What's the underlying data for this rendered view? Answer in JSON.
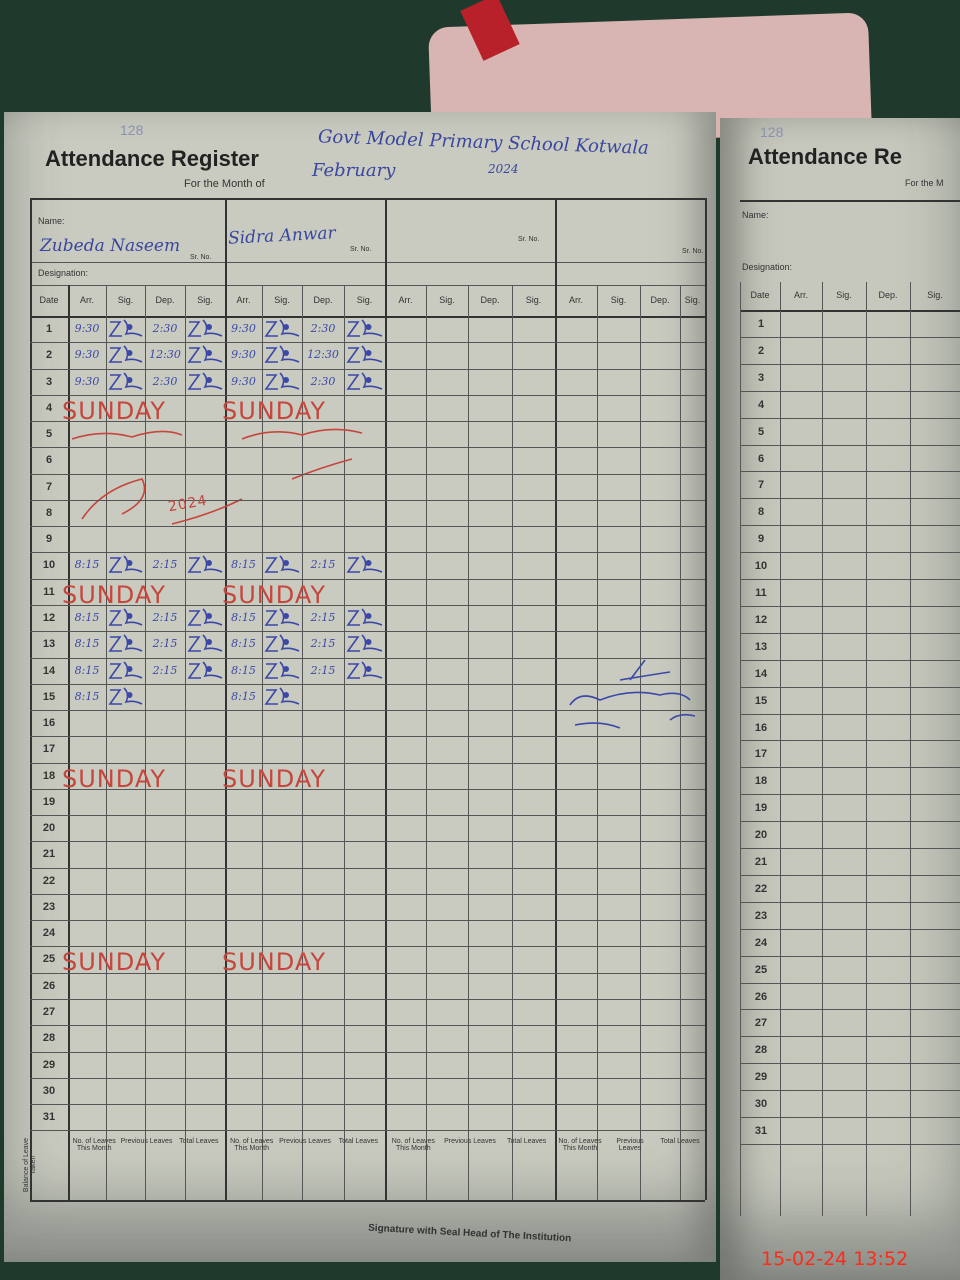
{
  "page_number": "128",
  "header": {
    "title": "Attendance Register",
    "institution": "Govt Model Primary School Kotwala",
    "month_label": "For the Month of",
    "month": "February",
    "year": "2024"
  },
  "labels": {
    "name": "Name:",
    "designation": "Designation:",
    "sr_no": "Sr. No.",
    "date": "Date",
    "arr": "Arr.",
    "sig": "Sig.",
    "dep": "Dep.",
    "sig2": "Sig."
  },
  "staff": [
    {
      "name": "Zubeda Naseem"
    },
    {
      "name": "Sidra Anwar"
    },
    {
      "name": ""
    },
    {
      "name": ""
    }
  ],
  "attendance": [
    {
      "date": "1",
      "a": [
        "9:30",
        "sig",
        "2:30",
        "sig"
      ],
      "b": [
        "9:30",
        "sig",
        "2:30",
        "sig"
      ]
    },
    {
      "date": "2",
      "a": [
        "9:30",
        "sig",
        "12:30",
        "sig"
      ],
      "b": [
        "9:30",
        "sig",
        "12:30",
        "sig"
      ]
    },
    {
      "date": "3",
      "a": [
        "9:30",
        "sig",
        "2:30",
        "sig"
      ],
      "b": [
        "9:30",
        "sig",
        "2:30",
        "sig"
      ]
    },
    {
      "date": "4",
      "note": "SUNDAY"
    },
    {
      "date": "5",
      "note": "holiday (Urdu)"
    },
    {
      "date": "6"
    },
    {
      "date": "7"
    },
    {
      "date": "8",
      "note_small": "2024"
    },
    {
      "date": "9"
    },
    {
      "date": "10",
      "a": [
        "8:15",
        "sig",
        "2:15",
        "sig"
      ],
      "b": [
        "8:15",
        "sig",
        "2:15",
        "sig"
      ]
    },
    {
      "date": "11",
      "note": "SUNDAY"
    },
    {
      "date": "12",
      "a": [
        "8:15",
        "sig",
        "2:15",
        "sig"
      ],
      "b": [
        "8:15",
        "sig",
        "2:15",
        "sig"
      ]
    },
    {
      "date": "13",
      "a": [
        "8:15",
        "sig",
        "2:15",
        "sig"
      ],
      "b": [
        "8:15",
        "sig",
        "2:15",
        "sig"
      ]
    },
    {
      "date": "14",
      "a": [
        "8:15",
        "sig",
        "2:15",
        "sig"
      ],
      "b": [
        "8:15",
        "sig",
        "2:15",
        "sig"
      ]
    },
    {
      "date": "15",
      "a": [
        "8:15",
        "sig",
        "",
        ""
      ],
      "b": [
        "8:15",
        "sig",
        "",
        ""
      ]
    },
    {
      "date": "16"
    },
    {
      "date": "17"
    },
    {
      "date": "18",
      "note": "SUNDAY"
    },
    {
      "date": "19"
    },
    {
      "date": "20"
    },
    {
      "date": "21"
    },
    {
      "date": "22"
    },
    {
      "date": "23"
    },
    {
      "date": "24"
    },
    {
      "date": "25",
      "note": "SUNDAY"
    },
    {
      "date": "26"
    },
    {
      "date": "27"
    },
    {
      "date": "28"
    },
    {
      "date": "29"
    },
    {
      "date": "30"
    },
    {
      "date": "31"
    }
  ],
  "footer": {
    "side_label": "Balance of Leave Taken",
    "cols": [
      "No. of Leaves This Month",
      "Previous Leaves",
      "Total Leaves"
    ],
    "signature_label": "Signature with Seal Head of The Institution"
  },
  "right_page": {
    "title": "Attendance Re",
    "month_label": "For the M"
  },
  "timestamp": "15-02-24  13:52",
  "colors": {
    "ink_blue": "#3c48a8",
    "ink_red": "#c6463d",
    "timestamp": "#ff2a1a"
  }
}
